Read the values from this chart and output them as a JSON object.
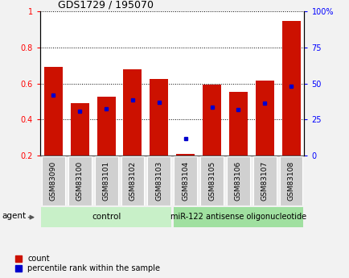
{
  "title": "GDS1729 / 195070",
  "categories": [
    "GSM83090",
    "GSM83100",
    "GSM83101",
    "GSM83102",
    "GSM83103",
    "GSM83104",
    "GSM83105",
    "GSM83106",
    "GSM83107",
    "GSM83108"
  ],
  "red_values": [
    0.69,
    0.49,
    0.525,
    0.68,
    0.625,
    0.21,
    0.595,
    0.555,
    0.615,
    0.945
  ],
  "blue_values": [
    0.535,
    0.445,
    0.46,
    0.51,
    0.495,
    0.295,
    0.47,
    0.455,
    0.49,
    0.585
  ],
  "ylim_left": [
    0.2,
    1.0
  ],
  "ylim_right": [
    0,
    100
  ],
  "yticks_left": [
    0.2,
    0.4,
    0.6,
    0.8,
    1.0
  ],
  "ytick_labels_left": [
    "0.2",
    "0.4",
    "0.6",
    "0.8",
    "1"
  ],
  "yticks_right": [
    0,
    25,
    50,
    75,
    100
  ],
  "ytick_labels_right": [
    "0",
    "25",
    "50",
    "75",
    "100%"
  ],
  "bar_bottom": 0.2,
  "bar_color": "#cc1100",
  "dot_color": "#0000cc",
  "bar_width": 0.7,
  "group1_label": "control",
  "group2_label": "miR-122 antisense oligonucleotide",
  "group1_indices": [
    0,
    1,
    2,
    3,
    4
  ],
  "group2_indices": [
    5,
    6,
    7,
    8,
    9
  ],
  "agent_label": "agent",
  "legend_count_label": "count",
  "legend_pct_label": "percentile rank within the sample",
  "bg_color": "#f2f2f2",
  "plot_bg": "#ffffff",
  "group_bg1": "#c8f0c8",
  "group_bg2": "#a0e0a0",
  "tick_label_bg": "#d0d0d0",
  "title_fontsize": 9,
  "axis_fontsize": 7,
  "label_fontsize": 6.5,
  "group_fontsize": 7.5,
  "legend_fontsize": 7
}
